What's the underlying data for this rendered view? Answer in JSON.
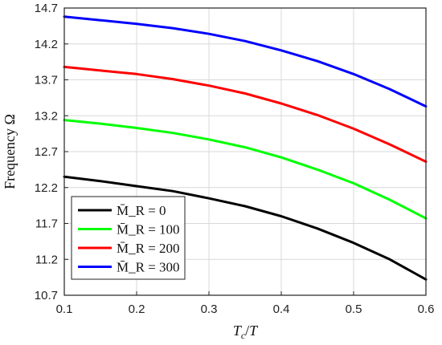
{
  "chart_data": {
    "type": "line",
    "xlabel": "T_c/T",
    "ylabel": "Frequency Ω",
    "xlim": [
      0.1,
      0.6
    ],
    "ylim": [
      10.7,
      14.7
    ],
    "xticks": [
      "0.1",
      "0.2",
      "0.3",
      "0.4",
      "0.5",
      "0.6"
    ],
    "yticks": [
      "10.7",
      "11.2",
      "11.7",
      "12.2",
      "12.7",
      "13.2",
      "13.7",
      "14.2",
      "14.7"
    ],
    "grid": true,
    "legend_position": "bottom-left",
    "x": [
      0.1,
      0.15,
      0.2,
      0.25,
      0.3,
      0.35,
      0.4,
      0.45,
      0.5,
      0.55,
      0.6
    ],
    "series": [
      {
        "name": "M̄_R = 0",
        "color": "#000000",
        "values": [
          12.35,
          12.29,
          12.22,
          12.15,
          12.05,
          11.94,
          11.8,
          11.63,
          11.43,
          11.2,
          10.92
        ]
      },
      {
        "name": "M̄_R = 100",
        "color": "#00ff00",
        "values": [
          13.14,
          13.09,
          13.03,
          12.96,
          12.87,
          12.76,
          12.62,
          12.45,
          12.26,
          12.03,
          11.77
        ]
      },
      {
        "name": "M̄_R = 200",
        "color": "#ff0000",
        "values": [
          13.88,
          13.83,
          13.78,
          13.71,
          13.62,
          13.51,
          13.37,
          13.21,
          13.02,
          12.8,
          12.56
        ]
      },
      {
        "name": "M̄_R = 300",
        "color": "#0000ff",
        "values": [
          14.58,
          14.53,
          14.48,
          14.42,
          14.34,
          14.24,
          14.11,
          13.96,
          13.78,
          13.57,
          13.33
        ]
      }
    ]
  }
}
